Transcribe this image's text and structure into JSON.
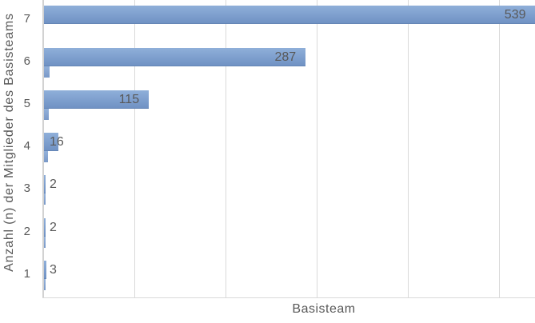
{
  "chart_data": {
    "type": "bar",
    "orientation": "horizontal",
    "title": "",
    "xlabel": "Basisteam",
    "ylabel": "Anzahl (n) der Mitglieder des Basisteams",
    "categories": [
      "7",
      "6",
      "5",
      "4",
      "3",
      "2",
      "1"
    ],
    "series": [
      {
        "name": "series-1-main",
        "values": [
          539,
          287,
          115,
          16,
          2,
          2,
          3
        ],
        "data_labels": [
          "539",
          "287",
          "115",
          "16",
          "2",
          "2",
          "3"
        ]
      },
      {
        "name": "series-2-small-unlabeled",
        "values": [
          0,
          6,
          5,
          4,
          2,
          2,
          2
        ],
        "note": "thin unlabeled stub bars drawn under each main bar; values estimated from pixel widths"
      }
    ],
    "x_axis": {
      "min": 0,
      "gridline_interval": 100,
      "gridlines_at": [
        100,
        200,
        300,
        400,
        500
      ],
      "xlim_visible": [
        0,
        539
      ],
      "tick_labels_shown": false
    },
    "grid": "vertical gridlines on",
    "legend": "none",
    "colors": {
      "bar_fill_top": "#8FAFD9",
      "bar_fill_bottom": "#7092C4",
      "bar_edge_bottom": "#6586B6",
      "data_label_text": "#595959",
      "axis_tick_text": "#595959",
      "axis_title_text": "#595959",
      "gridline": "#D9D9D9",
      "axis_line": "#D2D2D2",
      "background": "#FFFFFF"
    }
  }
}
